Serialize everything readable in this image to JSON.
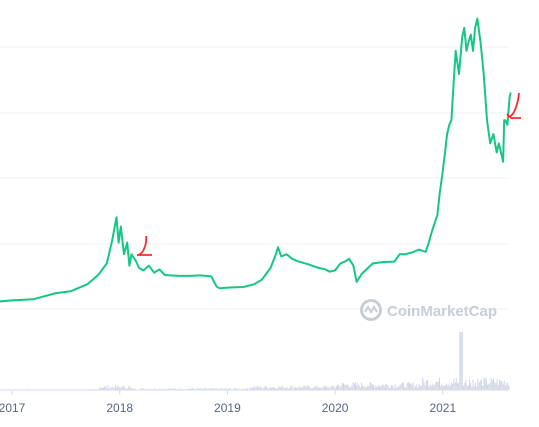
{
  "chart_data": {
    "type": "line",
    "title": "",
    "xlabel": "",
    "ylabel": "",
    "x_ticks": [
      "2017",
      "2018",
      "2019",
      "2020",
      "2021"
    ],
    "grid": true,
    "legend": "none",
    "series": [
      {
        "color": "#16c784",
        "x": [
          2016.85,
          2017.0,
          2017.2,
          2017.4,
          2017.55,
          2017.7,
          2017.8,
          2017.88,
          2017.93,
          2017.97,
          2017.99,
          2018.01,
          2018.04,
          2018.07,
          2018.09,
          2018.11,
          2018.15,
          2018.18,
          2018.22,
          2018.27,
          2018.32,
          2018.37,
          2018.42,
          2018.47,
          2018.55,
          2018.65,
          2018.75,
          2018.85,
          2018.9,
          2018.93,
          2018.97,
          2019.05,
          2019.15,
          2019.25,
          2019.32,
          2019.4,
          2019.45,
          2019.47,
          2019.5,
          2019.55,
          2019.6,
          2019.65,
          2019.75,
          2019.85,
          2019.9,
          2019.95,
          2020.0,
          2020.05,
          2020.1,
          2020.13,
          2020.17,
          2020.2,
          2020.25,
          2020.35,
          2020.45,
          2020.55,
          2020.6,
          2020.65,
          2020.72,
          2020.78,
          2020.84,
          2020.87,
          2020.9,
          2020.95,
          2020.97,
          2021.0,
          2021.02,
          2021.04,
          2021.06,
          2021.08,
          2021.1,
          2021.12,
          2021.15,
          2021.18,
          2021.2,
          2021.22,
          2021.24,
          2021.26,
          2021.28,
          2021.3,
          2021.32,
          2021.35,
          2021.38,
          2021.41,
          2021.44,
          2021.47,
          2021.5,
          2021.52,
          2021.54,
          2021.56,
          2021.57,
          2021.58,
          2021.6,
          2021.62,
          2021.63
        ],
        "values": [
          700,
          1000,
          1250,
          2500,
          3000,
          4500,
          6500,
          9000,
          14000,
          19000,
          13500,
          17000,
          11000,
          13500,
          8500,
          11000,
          9500,
          8000,
          7500,
          8500,
          7000,
          7700,
          6500,
          6400,
          6300,
          6300,
          6400,
          6200,
          4000,
          3600,
          3700,
          3800,
          3900,
          4500,
          5500,
          8000,
          11000,
          12500,
          10500,
          11000,
          10000,
          9500,
          8800,
          8000,
          7800,
          7200,
          7500,
          9000,
          9500,
          10000,
          8500,
          5000,
          6800,
          9000,
          9300,
          9400,
          11000,
          11000,
          11400,
          12000,
          11500,
          13500,
          16000,
          19500,
          24000,
          29000,
          33000,
          37000,
          39000,
          40000,
          48000,
          55000,
          50000,
          58000,
          60000,
          55000,
          57000,
          58500,
          55000,
          60000,
          62000,
          57000,
          50000,
          40000,
          35000,
          37000,
          33000,
          35000,
          33000,
          31000,
          40000,
          40000,
          39000,
          45000,
          46000
        ]
      }
    ],
    "volume_note": "",
    "annotations": [
      "red-arrow-2018",
      "red-arrow-2021"
    ],
    "watermark": "CoinMarketCap"
  }
}
